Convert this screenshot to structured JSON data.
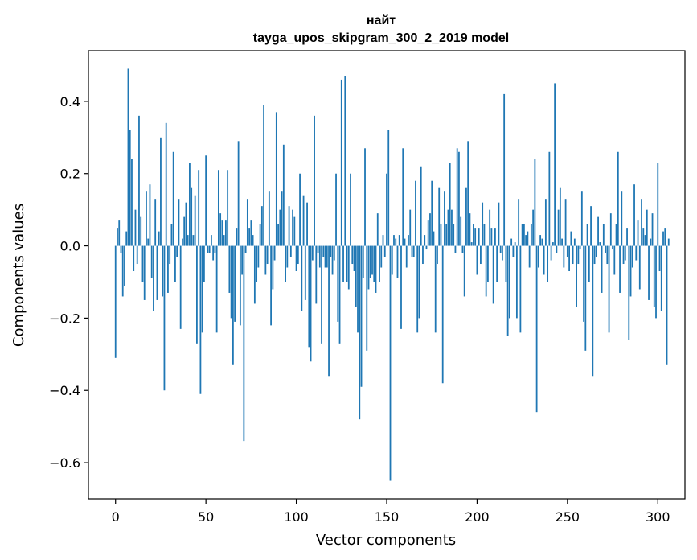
{
  "chart_data": {
    "type": "bar",
    "title_line1": "найт",
    "title_line2": "tayga_upos_skipgram_300_2_2019 model",
    "xlabel": "Vector components",
    "ylabel": "Components values",
    "xlim": [
      -15,
      315
    ],
    "ylim": [
      -0.7,
      0.54
    ],
    "xticks": [
      0,
      50,
      100,
      150,
      200,
      250,
      300
    ],
    "xtick_labels": [
      "0",
      "50",
      "100",
      "150",
      "200",
      "250",
      "300"
    ],
    "yticks": [
      -0.6,
      -0.4,
      -0.2,
      0.0,
      0.2,
      0.4
    ],
    "ytick_labels": [
      "−0.6",
      "−0.4",
      "−0.2",
      "0.0",
      "0.2",
      "0.4"
    ],
    "bar_color": "#1f77b4",
    "grid": false,
    "values": [
      -0.31,
      0.05,
      0.07,
      -0.02,
      -0.14,
      -0.11,
      0.04,
      0.49,
      0.32,
      0.24,
      -0.07,
      0.1,
      -0.05,
      0.36,
      0.08,
      -0.1,
      -0.15,
      0.15,
      0.02,
      0.17,
      -0.09,
      -0.18,
      0.13,
      -0.15,
      0.04,
      0.3,
      -0.14,
      -0.4,
      0.34,
      -0.13,
      -0.05,
      0.06,
      0.26,
      -0.1,
      -0.03,
      0.13,
      -0.23,
      0.02,
      0.08,
      0.12,
      0.03,
      0.23,
      0.16,
      0.03,
      0.14,
      -0.27,
      0.21,
      -0.41,
      -0.24,
      -0.1,
      0.25,
      -0.02,
      -0.02,
      0.03,
      -0.04,
      -0.02,
      -0.24,
      0.21,
      0.09,
      0.07,
      0.03,
      0.07,
      0.21,
      -0.13,
      -0.2,
      -0.33,
      -0.21,
      0.05,
      0.29,
      -0.22,
      -0.08,
      -0.54,
      -0.02,
      0.13,
      0.05,
      0.07,
      0.03,
      -0.16,
      -0.1,
      -0.06,
      0.06,
      0.11,
      0.39,
      -0.08,
      -0.05,
      0.15,
      -0.22,
      -0.12,
      -0.04,
      0.37,
      0.06,
      0.1,
      0.15,
      0.28,
      -0.1,
      -0.06,
      0.11,
      -0.03,
      0.1,
      0.08,
      -0.07,
      -0.05,
      0.2,
      -0.18,
      0.14,
      -0.15,
      0.12,
      -0.28,
      -0.32,
      -0.04,
      0.36,
      -0.16,
      -0.02,
      -0.06,
      -0.27,
      -0.03,
      -0.06,
      -0.06,
      -0.36,
      -0.03,
      -0.08,
      -0.04,
      0.2,
      -0.21,
      -0.27,
      0.46,
      -0.1,
      0.47,
      -0.1,
      -0.12,
      0.2,
      -0.05,
      -0.07,
      -0.17,
      -0.24,
      -0.48,
      -0.39,
      -0.09,
      0.27,
      -0.29,
      -0.12,
      -0.09,
      -0.08,
      -0.1,
      -0.13,
      0.09,
      -0.1,
      -0.06,
      0.03,
      -0.03,
      0.2,
      0.32,
      -0.65,
      -0.08,
      0.03,
      0.02,
      -0.09,
      0.03,
      -0.23,
      0.27,
      0.02,
      -0.06,
      0.03,
      0.1,
      -0.03,
      -0.03,
      0.18,
      -0.24,
      -0.2,
      0.22,
      -0.05,
      0.03,
      -0.01,
      0.07,
      0.09,
      0.18,
      0.04,
      -0.24,
      -0.05,
      0.16,
      0.06,
      -0.38,
      0.15,
      0.06,
      0.1,
      0.23,
      0.1,
      0.06,
      -0.02,
      0.27,
      0.26,
      0.08,
      -0.02,
      -0.14,
      0.16,
      0.29,
      0.09,
      0.01,
      0.06,
      0.05,
      -0.08,
      0.05,
      -0.05,
      0.12,
      0.06,
      -0.14,
      -0.1,
      0.1,
      0.05,
      -0.16,
      0.05,
      -0.1,
      0.12,
      -0.02,
      -0.04,
      0.42,
      -0.1,
      -0.25,
      -0.2,
      0.02,
      -0.03,
      0.01,
      -0.2,
      0.13,
      -0.24,
      0.06,
      0.06,
      0.03,
      0.04,
      -0.06,
      0.06,
      0.1,
      0.24,
      -0.46,
      -0.06,
      0.03,
      0.02,
      -0.08,
      0.13,
      -0.1,
      0.26,
      -0.04,
      0.01,
      0.45,
      -0.02,
      0.1,
      0.16,
      0.02,
      -0.06,
      0.13,
      -0.03,
      -0.07,
      0.04,
      -0.05,
      0.02,
      -0.17,
      -0.05,
      -0.01,
      0.15,
      -0.21,
      -0.29,
      0.06,
      -0.1,
      0.11,
      -0.36,
      -0.05,
      -0.03,
      0.08,
      0.01,
      -0.13,
      0.06,
      -0.02,
      -0.05,
      -0.24,
      0.09,
      -0.01,
      -0.08,
      0.06,
      0.26,
      -0.13,
      0.15,
      -0.05,
      -0.04,
      0.05,
      -0.26,
      -0.14,
      -0.06,
      0.17,
      -0.04,
      0.07,
      -0.12,
      0.13,
      0.05,
      0.03,
      0.1,
      -0.15,
      0.02,
      0.09,
      -0.17,
      -0.2,
      0.23,
      -0.07,
      -0.18,
      0.04,
      0.05,
      -0.33,
      0.02
    ]
  }
}
